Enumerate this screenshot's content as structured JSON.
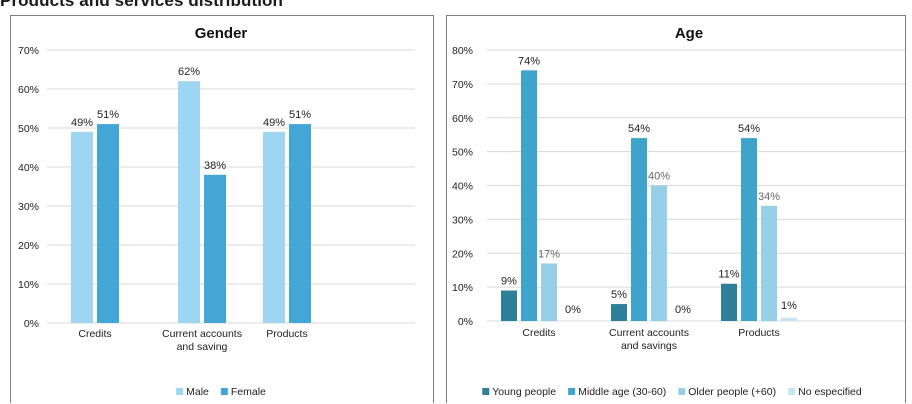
{
  "page": {
    "title": "Products and services distribution"
  },
  "chart_data": [
    {
      "type": "bar",
      "title": "Gender",
      "categories": [
        [
          "Credits"
        ],
        [
          "Current accounts",
          "and saving"
        ],
        [
          "Products"
        ]
      ],
      "series": [
        {
          "name": "Male",
          "color": "#9dd5f3",
          "values": [
            49,
            62,
            49
          ]
        },
        {
          "name": "Female",
          "color": "#44a5d7",
          "values": [
            51,
            38,
            51
          ]
        }
      ],
      "ylim": [
        0,
        70
      ],
      "yticks": [
        0,
        10,
        20,
        30,
        40,
        50,
        60,
        70
      ],
      "ytick_labels": [
        "0%",
        "10%",
        "20%",
        "30%",
        "40%",
        "50%",
        "60%",
        "70%"
      ],
      "data_labels": [
        [
          "49%",
          "62%",
          "49%"
        ],
        [
          "51%",
          "38%",
          "51%"
        ]
      ],
      "grid": true,
      "legend": "bottom"
    },
    {
      "type": "bar",
      "title": "Age",
      "categories": [
        [
          "Credits"
        ],
        [
          "Current accounts",
          "and savings"
        ],
        [
          "Products"
        ]
      ],
      "series": [
        {
          "name": "Young people",
          "color": "#2e7f99",
          "values": [
            9,
            5,
            11
          ]
        },
        {
          "name": "Middle age (30-60)",
          "color": "#3ea4cc",
          "values": [
            74,
            54,
            54
          ]
        },
        {
          "name": "Older people (+60)",
          "color": "#96cfe6",
          "values": [
            17,
            40,
            34
          ]
        },
        {
          "name": "No especified",
          "color": "#c7e6f3",
          "values": [
            0,
            0,
            1
          ]
        }
      ],
      "ylim": [
        0,
        80
      ],
      "yticks": [
        0,
        10,
        20,
        30,
        40,
        50,
        60,
        70,
        80
      ],
      "ytick_labels": [
        "0%",
        "10%",
        "20%",
        "30%",
        "40%",
        "50%",
        "60%",
        "70%",
        "80%"
      ],
      "data_labels": [
        [
          "9%",
          "5%",
          "11%"
        ],
        [
          "74%",
          "54%",
          "54%"
        ],
        [
          "17%",
          "40%",
          "34%"
        ],
        [
          "0%",
          "0%",
          "1%"
        ]
      ],
      "grid": true,
      "legend": "bottom"
    }
  ]
}
